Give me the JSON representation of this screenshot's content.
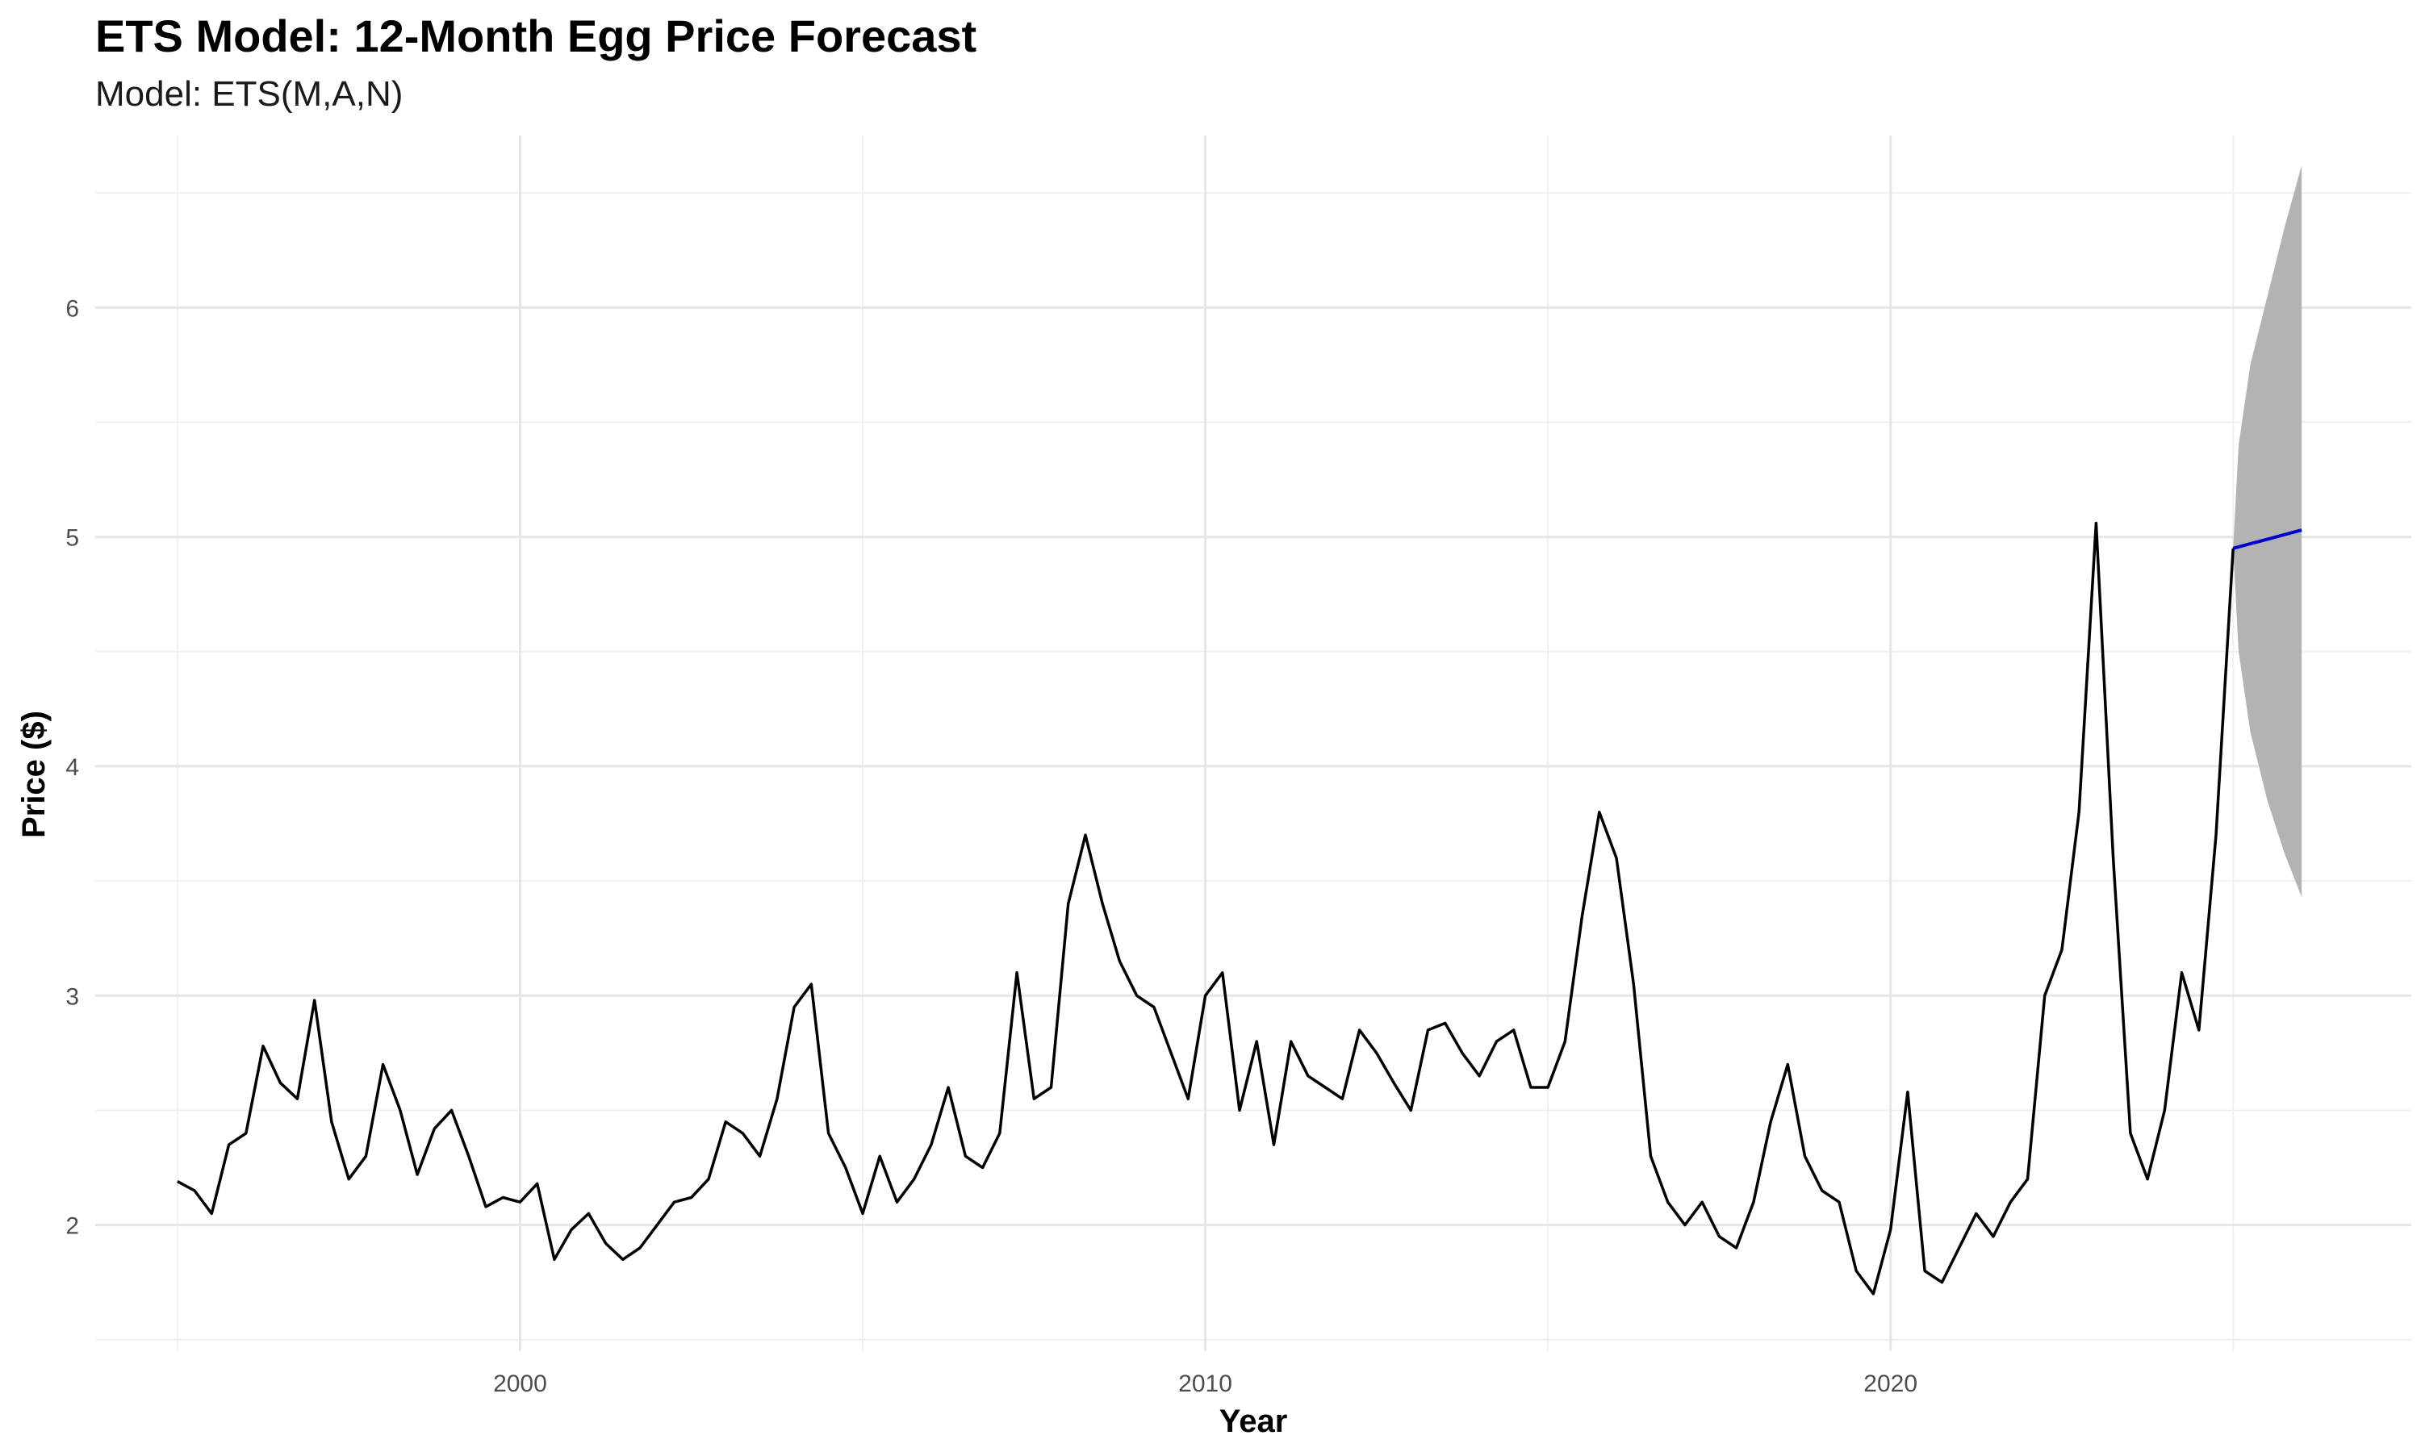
{
  "chart_data": {
    "type": "line",
    "title": "ETS Model: 12-Month Egg Price Forecast",
    "subtitle": "Model: ETS(M,A,N)",
    "xlabel": "Year",
    "ylabel": "Price ($)",
    "xlim": [
      1993.8,
      2027.6
    ],
    "ylim": [
      1.45,
      6.75
    ],
    "x_ticks": [
      2000,
      2010,
      2020
    ],
    "y_ticks": [
      2,
      3,
      4,
      5,
      6
    ],
    "grid": true,
    "legend": "none",
    "colors": {
      "history": "#000000",
      "forecast": "#0000cc",
      "interval": "#b3b3b3"
    },
    "series": [
      {
        "role": "history",
        "points": [
          [
            1995.0,
            2.19
          ],
          [
            1995.25,
            2.15
          ],
          [
            1995.5,
            2.05
          ],
          [
            1995.75,
            2.35
          ],
          [
            1996.0,
            2.4
          ],
          [
            1996.25,
            2.78
          ],
          [
            1996.5,
            2.62
          ],
          [
            1996.75,
            2.55
          ],
          [
            1997.0,
            2.98
          ],
          [
            1997.25,
            2.45
          ],
          [
            1997.5,
            2.2
          ],
          [
            1997.75,
            2.3
          ],
          [
            1998.0,
            2.7
          ],
          [
            1998.25,
            2.5
          ],
          [
            1998.5,
            2.22
          ],
          [
            1998.75,
            2.42
          ],
          [
            1999.0,
            2.5
          ],
          [
            1999.25,
            2.3
          ],
          [
            1999.5,
            2.08
          ],
          [
            1999.75,
            2.12
          ],
          [
            2000.0,
            2.1
          ],
          [
            2000.25,
            2.18
          ],
          [
            2000.5,
            1.85
          ],
          [
            2000.75,
            1.98
          ],
          [
            2001.0,
            2.05
          ],
          [
            2001.25,
            1.92
          ],
          [
            2001.5,
            1.85
          ],
          [
            2001.75,
            1.9
          ],
          [
            2002.0,
            2.0
          ],
          [
            2002.25,
            2.1
          ],
          [
            2002.5,
            2.12
          ],
          [
            2002.75,
            2.2
          ],
          [
            2003.0,
            2.45
          ],
          [
            2003.25,
            2.4
          ],
          [
            2003.5,
            2.3
          ],
          [
            2003.75,
            2.55
          ],
          [
            2004.0,
            2.95
          ],
          [
            2004.25,
            3.05
          ],
          [
            2004.5,
            2.4
          ],
          [
            2004.75,
            2.25
          ],
          [
            2005.0,
            2.05
          ],
          [
            2005.25,
            2.3
          ],
          [
            2005.5,
            2.1
          ],
          [
            2005.75,
            2.2
          ],
          [
            2006.0,
            2.35
          ],
          [
            2006.25,
            2.6
          ],
          [
            2006.5,
            2.3
          ],
          [
            2006.75,
            2.25
          ],
          [
            2007.0,
            2.4
          ],
          [
            2007.25,
            3.1
          ],
          [
            2007.5,
            2.55
          ],
          [
            2007.75,
            2.6
          ],
          [
            2008.0,
            3.4
          ],
          [
            2008.25,
            3.7
          ],
          [
            2008.5,
            3.4
          ],
          [
            2008.75,
            3.15
          ],
          [
            2009.0,
            3.0
          ],
          [
            2009.25,
            2.95
          ],
          [
            2009.5,
            2.75
          ],
          [
            2009.75,
            2.55
          ],
          [
            2010.0,
            3.0
          ],
          [
            2010.25,
            3.1
          ],
          [
            2010.5,
            2.5
          ],
          [
            2010.75,
            2.8
          ],
          [
            2011.0,
            2.35
          ],
          [
            2011.25,
            2.8
          ],
          [
            2011.5,
            2.65
          ],
          [
            2011.75,
            2.6
          ],
          [
            2012.0,
            2.55
          ],
          [
            2012.25,
            2.85
          ],
          [
            2012.5,
            2.75
          ],
          [
            2012.75,
            2.62
          ],
          [
            2013.0,
            2.5
          ],
          [
            2013.25,
            2.85
          ],
          [
            2013.5,
            2.88
          ],
          [
            2013.75,
            2.75
          ],
          [
            2014.0,
            2.65
          ],
          [
            2014.25,
            2.8
          ],
          [
            2014.5,
            2.85
          ],
          [
            2014.75,
            2.6
          ],
          [
            2015.0,
            2.6
          ],
          [
            2015.25,
            2.8
          ],
          [
            2015.5,
            3.35
          ],
          [
            2015.75,
            3.8
          ],
          [
            2016.0,
            3.6
          ],
          [
            2016.25,
            3.05
          ],
          [
            2016.5,
            2.3
          ],
          [
            2016.75,
            2.1
          ],
          [
            2017.0,
            2.0
          ],
          [
            2017.25,
            2.1
          ],
          [
            2017.5,
            1.95
          ],
          [
            2017.75,
            1.9
          ],
          [
            2018.0,
            2.1
          ],
          [
            2018.25,
            2.45
          ],
          [
            2018.5,
            2.7
          ],
          [
            2018.75,
            2.3
          ],
          [
            2019.0,
            2.15
          ],
          [
            2019.25,
            2.1
          ],
          [
            2019.5,
            1.8
          ],
          [
            2019.75,
            1.7
          ],
          [
            2020.0,
            1.98
          ],
          [
            2020.25,
            2.58
          ],
          [
            2020.5,
            1.8
          ],
          [
            2020.75,
            1.75
          ],
          [
            2021.0,
            1.9
          ],
          [
            2021.25,
            2.05
          ],
          [
            2021.5,
            1.95
          ],
          [
            2021.75,
            2.1
          ],
          [
            2022.0,
            2.2
          ],
          [
            2022.25,
            3.0
          ],
          [
            2022.5,
            3.2
          ],
          [
            2022.75,
            3.8
          ],
          [
            2023.0,
            5.06
          ],
          [
            2023.25,
            3.6
          ],
          [
            2023.5,
            2.4
          ],
          [
            2023.75,
            2.2
          ],
          [
            2024.0,
            2.5
          ],
          [
            2024.25,
            3.1
          ],
          [
            2024.5,
            2.85
          ],
          [
            2024.75,
            3.7
          ],
          [
            2025.0,
            4.95
          ]
        ]
      },
      {
        "role": "forecast",
        "points": [
          [
            2025.0,
            4.95
          ],
          [
            2026.0,
            5.03
          ]
        ]
      }
    ],
    "interval": {
      "x": [
        2025.0,
        2025.08,
        2025.25,
        2025.5,
        2025.75,
        2026.0
      ],
      "upper": [
        4.95,
        5.4,
        5.75,
        6.05,
        6.35,
        6.62
      ],
      "lower": [
        4.95,
        4.5,
        4.15,
        3.85,
        3.62,
        3.43
      ]
    }
  }
}
